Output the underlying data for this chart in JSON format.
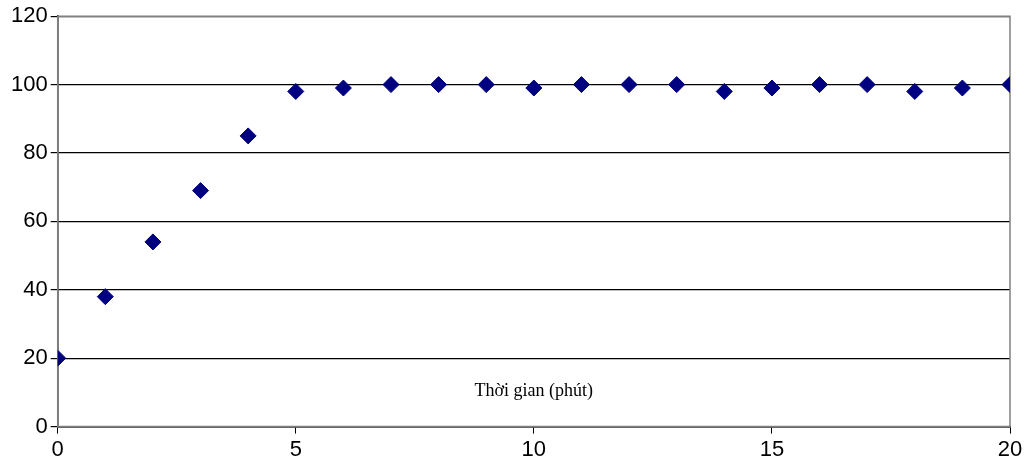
{
  "chart_data": {
    "type": "scatter",
    "xlabel": "Thời gian (phút)",
    "x": [
      0,
      1,
      2,
      3,
      4,
      5,
      6,
      7,
      8,
      9,
      10,
      11,
      12,
      13,
      14,
      15,
      16,
      17,
      18,
      19,
      20
    ],
    "series": [
      {
        "color": "#000080",
        "values": [
          20,
          38,
          54,
          69,
          85,
          98,
          99,
          100,
          100,
          100,
          99,
          100,
          100,
          100,
          98,
          99,
          100,
          100,
          98,
          99,
          100
        ]
      }
    ],
    "xlim": [
      0,
      20
    ],
    "xticks": [
      0,
      5,
      10,
      15,
      20
    ],
    "ylim": [
      0,
      120
    ],
    "yticks": [
      0,
      20,
      40,
      60,
      80,
      100,
      120
    ],
    "grid": "y",
    "marker": "diamond",
    "legend": false
  }
}
